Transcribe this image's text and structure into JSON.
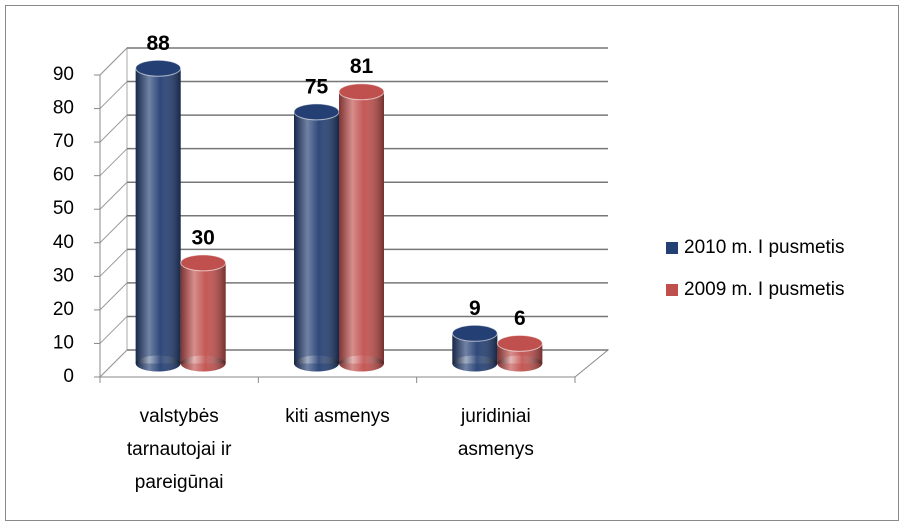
{
  "chart_data": {
    "type": "bar",
    "categories": [
      "valstybės tarnautojai ir pareigūnai",
      "kiti asmenys",
      "juridiniai asmenys"
    ],
    "series": [
      {
        "name": "2010 m. I pusmetis",
        "color": "#243f73",
        "values": [
          88,
          75,
          9
        ]
      },
      {
        "name": "2009 m. I pusmetis",
        "color": "#c0504d",
        "values": [
          30,
          81,
          6
        ]
      }
    ],
    "ylim": [
      0,
      90
    ],
    "yticks": [
      0,
      10,
      20,
      30,
      40,
      50,
      60,
      70,
      80,
      90
    ],
    "grid": true,
    "legend": "right"
  }
}
